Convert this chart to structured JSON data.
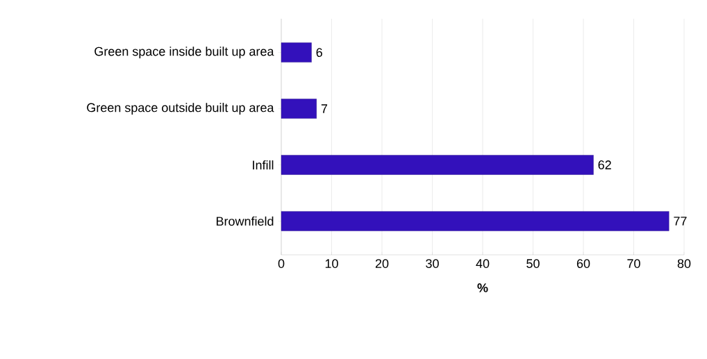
{
  "chart_data": {
    "type": "bar",
    "orientation": "horizontal",
    "xlabel": "%",
    "categories": [
      "Green space inside built up area",
      "Green space outside built up area",
      "Infill",
      "Brownfield"
    ],
    "values": [
      6,
      7,
      62,
      77
    ],
    "color": "#3311bb",
    "data_labels": true,
    "xlim": [
      0,
      80
    ],
    "xticks": [
      0,
      10,
      20,
      30,
      40,
      50,
      60,
      70,
      80
    ],
    "grid": "x"
  }
}
